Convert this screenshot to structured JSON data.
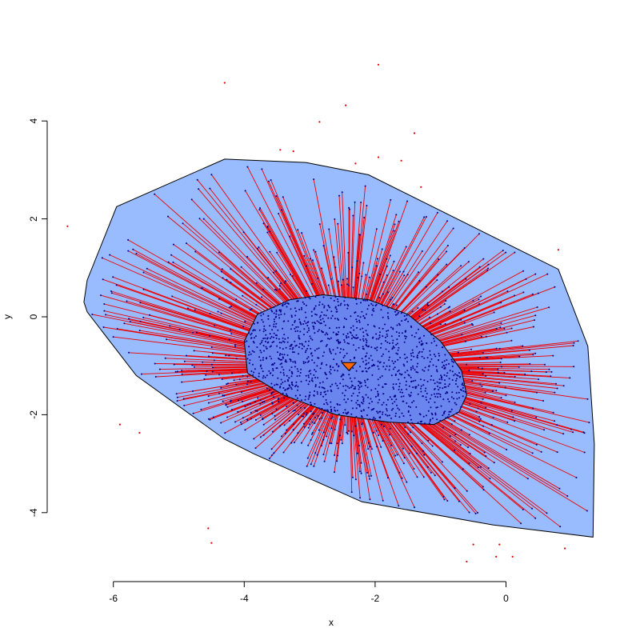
{
  "chart_data": {
    "type": "scatter",
    "title": "",
    "xlabel": "x",
    "ylabel": "y",
    "xlim": [
      -6.55,
      1.35
    ],
    "ylim": [
      -5.05,
      5.2
    ],
    "x_ticks": [
      -6,
      -4,
      -2,
      0
    ],
    "y_ticks": [
      -4,
      -2,
      0,
      2,
      4
    ],
    "x_tick_labels": [
      "-6",
      "-4",
      "-2",
      "0"
    ],
    "y_tick_labels": [
      "-4",
      "-2",
      "0",
      "2",
      "4"
    ],
    "grid": false,
    "legend": "none",
    "colors": {
      "outer_region": "#99bbff",
      "inner_region": "#6a85ee",
      "outline": "#000000",
      "rays": "#ee0000",
      "inner_points": "#00008b",
      "outlier_points": "#dd0000",
      "center_marker": "#ff6600"
    },
    "center": {
      "x": -2.4,
      "y": -1.0
    },
    "outer_hull": [
      [
        -5.95,
        2.25
      ],
      [
        -4.3,
        3.22
      ],
      [
        -3.05,
        3.15
      ],
      [
        -2.1,
        2.9
      ],
      [
        0.8,
        0.97
      ],
      [
        1.25,
        -0.6
      ],
      [
        1.35,
        -2.6
      ],
      [
        1.33,
        -4.5
      ],
      [
        -0.2,
        -4.25
      ],
      [
        -2.2,
        -3.78
      ],
      [
        -3.85,
        -2.8
      ],
      [
        -4.3,
        -2.5
      ],
      [
        -5.65,
        -1.2
      ],
      [
        -6.4,
        0.1
      ],
      [
        -6.45,
        0.3
      ],
      [
        -6.4,
        0.75
      ]
    ],
    "inner_region": [
      [
        -3.3,
        0.35
      ],
      [
        -2.8,
        0.45
      ],
      [
        -2.1,
        0.35
      ],
      [
        -1.5,
        0.05
      ],
      [
        -1.0,
        -0.5
      ],
      [
        -0.68,
        -1.1
      ],
      [
        -0.6,
        -1.6
      ],
      [
        -0.72,
        -1.95
      ],
      [
        -1.1,
        -2.2
      ],
      [
        -1.8,
        -2.15
      ],
      [
        -2.6,
        -2.0
      ],
      [
        -3.4,
        -1.6
      ],
      [
        -3.95,
        -1.15
      ],
      [
        -4.0,
        -0.5
      ],
      [
        -3.8,
        0.05
      ]
    ],
    "outlier_points": [
      [
        -4.3,
        4.78
      ],
      [
        -1.95,
        5.15
      ],
      [
        -2.45,
        4.32
      ],
      [
        -2.85,
        3.98
      ],
      [
        -1.4,
        3.75
      ],
      [
        -3.45,
        3.41
      ],
      [
        -3.25,
        3.38
      ],
      [
        -1.95,
        3.26
      ],
      [
        -1.6,
        3.19
      ],
      [
        -2.3,
        3.13
      ],
      [
        -1.3,
        2.65
      ],
      [
        -6.7,
        1.85
      ],
      [
        0.8,
        1.37
      ],
      [
        -5.9,
        -2.2
      ],
      [
        -5.6,
        -2.37
      ],
      [
        -4.55,
        -4.32
      ],
      [
        -4.5,
        -4.62
      ],
      [
        -0.5,
        -4.65
      ],
      [
        -0.1,
        -4.65
      ],
      [
        0.1,
        -4.9
      ],
      [
        -0.15,
        -4.9
      ],
      [
        -0.6,
        -5.0
      ],
      [
        0.9,
        -4.73
      ]
    ],
    "points_note_count": {
      "inner_points": 1200,
      "ray_points": 700
    }
  }
}
